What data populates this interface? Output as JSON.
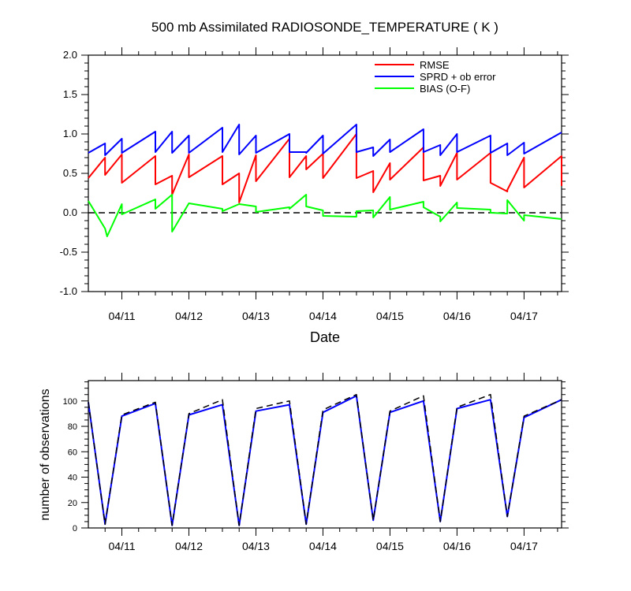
{
  "chart_data": [
    {
      "type": "line",
      "title": "500 mb Assimilated RADIOSONDE_TEMPERATURE ( K )",
      "xlabel": "Date",
      "ylabel": "",
      "xlim": [
        0,
        7.06
      ],
      "ylim": [
        -1.0,
        2.0
      ],
      "yticks": [
        2.0,
        1.5,
        1.0,
        0.5,
        0.0,
        -0.5,
        -1.0
      ],
      "ytick_labels": [
        "2.0",
        "1.5",
        "1.0",
        "0.5",
        "0.0",
        "-0.5",
        "-1.0"
      ],
      "xtick_labels": [
        "04/11",
        "04/12",
        "04/13",
        "04/14",
        "04/15",
        "04/16",
        "04/17"
      ],
      "xtick_positions": [
        0.5,
        1.5,
        2.5,
        3.5,
        4.5,
        5.5,
        6.5
      ],
      "legend": [
        "RMSE",
        "SPRD + ob error",
        "BIAS (O-F)"
      ],
      "legend_position": "top-right",
      "reference_line": {
        "y": 0,
        "style": "dashed"
      },
      "colors": {
        "rmse": "#ff0000",
        "sprd": "#0000ff",
        "bias": "#00ff00",
        "ref": "#000000"
      },
      "series": [
        {
          "name": "RMSE",
          "points": [
            [
              0,
              0.44
            ],
            [
              0.25,
              0.7
            ],
            [
              0.25,
              0.48
            ],
            [
              0.5,
              0.74
            ],
            [
              0.5,
              0.38
            ],
            [
              1.0,
              0.72
            ],
            [
              1.0,
              0.36
            ],
            [
              1.25,
              0.47
            ],
            [
              1.25,
              0.23
            ],
            [
              1.5,
              0.74
            ],
            [
              1.5,
              0.45
            ],
            [
              2.0,
              0.72
            ],
            [
              2.0,
              0.36
            ],
            [
              2.25,
              0.5
            ],
            [
              2.25,
              0.13
            ],
            [
              2.5,
              0.73
            ],
            [
              2.5,
              0.4
            ],
            [
              3.0,
              0.94
            ],
            [
              3.0,
              0.45
            ],
            [
              3.25,
              0.72
            ],
            [
              3.25,
              0.55
            ],
            [
              3.5,
              0.75
            ],
            [
              3.5,
              0.44
            ],
            [
              4.0,
              1.0
            ],
            [
              4.0,
              0.44
            ],
            [
              4.25,
              0.53
            ],
            [
              4.25,
              0.26
            ],
            [
              4.5,
              0.63
            ],
            [
              4.5,
              0.42
            ],
            [
              5.0,
              0.83
            ],
            [
              5.0,
              0.41
            ],
            [
              5.25,
              0.47
            ],
            [
              5.25,
              0.34
            ],
            [
              5.5,
              0.76
            ],
            [
              5.5,
              0.42
            ],
            [
              6.0,
              0.76
            ],
            [
              6.0,
              0.38
            ],
            [
              6.25,
              0.27
            ],
            [
              6.25,
              0.29
            ],
            [
              6.5,
              0.7
            ],
            [
              6.5,
              0.32
            ],
            [
              7.06,
              0.72
            ],
            [
              7.06,
              0.34
            ]
          ]
        },
        {
          "name": "SPRD + ob error",
          "points": [
            [
              0,
              0.76
            ],
            [
              0.25,
              0.88
            ],
            [
              0.25,
              0.73
            ],
            [
              0.5,
              0.94
            ],
            [
              0.5,
              0.76
            ],
            [
              1.0,
              1.03
            ],
            [
              1.0,
              0.77
            ],
            [
              1.25,
              1.03
            ],
            [
              1.25,
              0.76
            ],
            [
              1.5,
              0.98
            ],
            [
              1.5,
              0.76
            ],
            [
              2.0,
              1.08
            ],
            [
              2.0,
              0.77
            ],
            [
              2.25,
              1.12
            ],
            [
              2.25,
              0.74
            ],
            [
              2.5,
              0.98
            ],
            [
              2.5,
              0.76
            ],
            [
              3.0,
              1.0
            ],
            [
              3.0,
              0.77
            ],
            [
              3.25,
              0.77
            ],
            [
              3.25,
              0.76
            ],
            [
              3.5,
              0.98
            ],
            [
              3.5,
              0.75
            ],
            [
              4.0,
              1.12
            ],
            [
              4.0,
              0.77
            ],
            [
              4.25,
              0.83
            ],
            [
              4.25,
              0.72
            ],
            [
              4.5,
              0.93
            ],
            [
              4.5,
              0.77
            ],
            [
              5.0,
              1.06
            ],
            [
              5.0,
              0.77
            ],
            [
              5.25,
              0.86
            ],
            [
              5.25,
              0.73
            ],
            [
              5.5,
              1.0
            ],
            [
              5.5,
              0.77
            ],
            [
              6.0,
              0.98
            ],
            [
              6.0,
              0.76
            ],
            [
              6.25,
              0.88
            ],
            [
              6.25,
              0.73
            ],
            [
              6.5,
              0.89
            ],
            [
              6.5,
              0.75
            ],
            [
              7.06,
              1.02
            ]
          ]
        },
        {
          "name": "BIAS (O-F)",
          "points": [
            [
              0,
              0.15
            ],
            [
              0.25,
              -0.2
            ],
            [
              0.28,
              -0.3
            ],
            [
              0.5,
              0.11
            ],
            [
              0.5,
              -0.02
            ],
            [
              1.0,
              0.17
            ],
            [
              1.0,
              0.05
            ],
            [
              1.25,
              0.23
            ],
            [
              1.25,
              -0.24
            ],
            [
              1.5,
              0.12
            ],
            [
              2.0,
              0.05
            ],
            [
              2.0,
              0.02
            ],
            [
              2.25,
              0.11
            ],
            [
              2.5,
              0.08
            ],
            [
              2.5,
              0.01
            ],
            [
              3.0,
              0.07
            ],
            [
              3.0,
              0.05
            ],
            [
              3.25,
              0.23
            ],
            [
              3.25,
              0.08
            ],
            [
              3.5,
              0.03
            ],
            [
              3.5,
              -0.04
            ],
            [
              4.0,
              -0.05
            ],
            [
              4.0,
              0.02
            ],
            [
              4.25,
              0.03
            ],
            [
              4.25,
              -0.06
            ],
            [
              4.5,
              0.2
            ],
            [
              4.5,
              0.04
            ],
            [
              5.0,
              0.14
            ],
            [
              5.0,
              0.07
            ],
            [
              5.25,
              -0.05
            ],
            [
              5.25,
              -0.11
            ],
            [
              5.5,
              0.13
            ],
            [
              5.5,
              0.06
            ],
            [
              6.0,
              0.04
            ],
            [
              6.0,
              0.0
            ],
            [
              6.25,
              -0.01
            ],
            [
              6.25,
              0.16
            ],
            [
              6.5,
              -0.1
            ],
            [
              6.5,
              -0.03
            ],
            [
              7.06,
              -0.08
            ]
          ]
        }
      ]
    },
    {
      "type": "line",
      "title": "",
      "xlabel": "",
      "ylabel": "number of observations",
      "xlim": [
        0,
        7.06
      ],
      "ylim": [
        0,
        116
      ],
      "yticks": [
        0,
        20,
        40,
        60,
        80,
        100
      ],
      "ytick_labels": [
        "0",
        "20",
        "40",
        "60",
        "80",
        "100"
      ],
      "xtick_labels": [
        "04/11",
        "04/12",
        "04/13",
        "04/14",
        "04/15",
        "04/16",
        "04/17"
      ],
      "xtick_positions": [
        0.5,
        1.5,
        2.5,
        3.5,
        4.5,
        5.5,
        6.5
      ],
      "colors": {
        "assimilated": "#0000ff",
        "total": "#000000"
      },
      "series": [
        {
          "name": "assimilated",
          "style": "solid",
          "points": [
            [
              0,
              99
            ],
            [
              0.25,
              3
            ],
            [
              0.5,
              88
            ],
            [
              1.0,
              98
            ],
            [
              1.25,
              2
            ],
            [
              1.5,
              89
            ],
            [
              2.0,
              97
            ],
            [
              2.25,
              2
            ],
            [
              2.5,
              92
            ],
            [
              3.0,
              97
            ],
            [
              3.25,
              3
            ],
            [
              3.5,
              91
            ],
            [
              4.0,
              104
            ],
            [
              4.25,
              6
            ],
            [
              4.5,
              91
            ],
            [
              5.0,
              100
            ],
            [
              5.25,
              5
            ],
            [
              5.5,
              94
            ],
            [
              6.0,
              101
            ],
            [
              6.25,
              9
            ],
            [
              6.5,
              87
            ],
            [
              7.06,
              101
            ]
          ]
        },
        {
          "name": "total",
          "style": "dashed",
          "points": [
            [
              0,
              99
            ],
            [
              0.25,
              3
            ],
            [
              0.5,
              89
            ],
            [
              1.0,
              99
            ],
            [
              1.25,
              2
            ],
            [
              1.5,
              90
            ],
            [
              2.0,
              101
            ],
            [
              2.25,
              2
            ],
            [
              2.5,
              94
            ],
            [
              3.0,
              100
            ],
            [
              3.25,
              3
            ],
            [
              3.5,
              93
            ],
            [
              4.0,
              105
            ],
            [
              4.25,
              6
            ],
            [
              4.5,
              92
            ],
            [
              5.0,
              104
            ],
            [
              5.25,
              5
            ],
            [
              5.5,
              95
            ],
            [
              6.0,
              105
            ],
            [
              6.25,
              9
            ],
            [
              6.5,
              88
            ],
            [
              7.06,
              101
            ]
          ]
        }
      ]
    }
  ]
}
